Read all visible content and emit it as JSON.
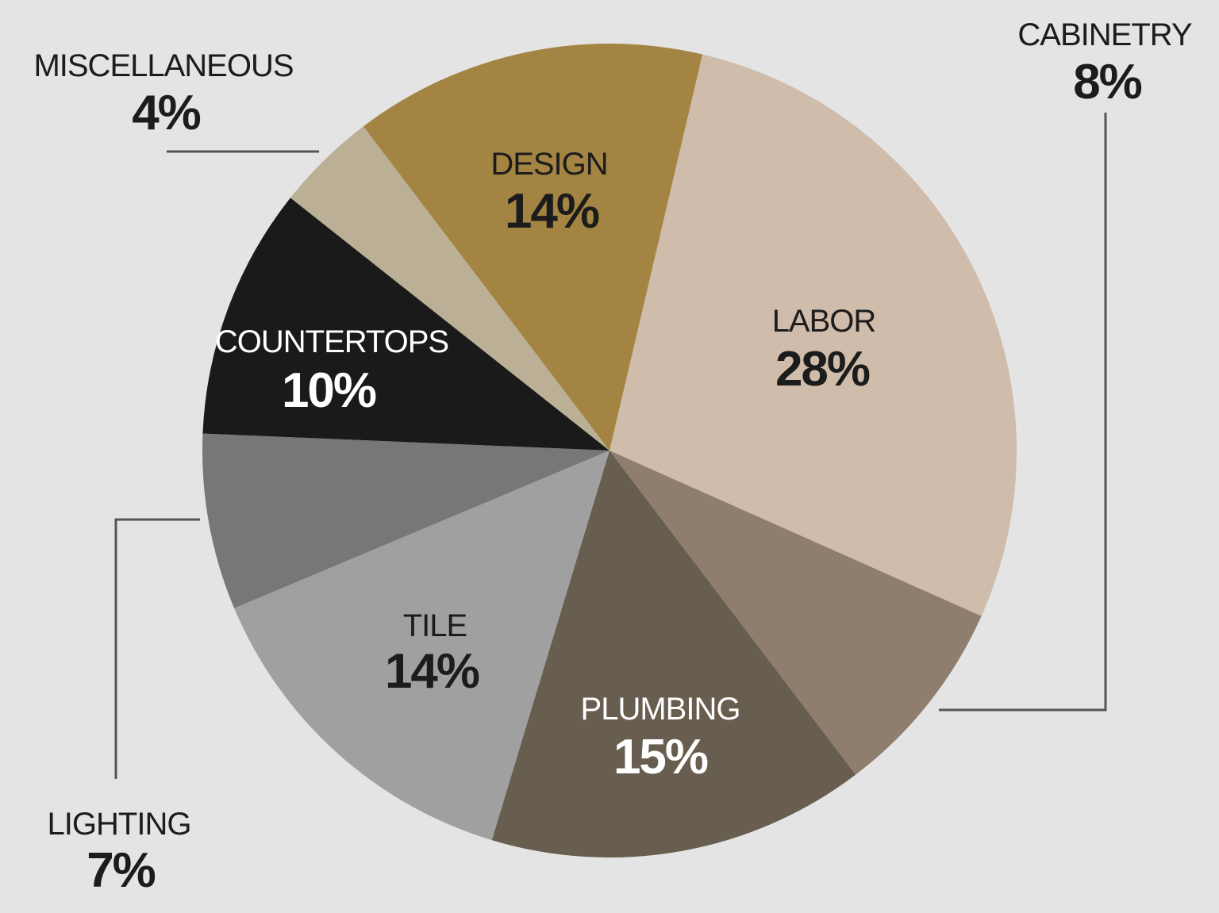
{
  "chart_data": {
    "type": "pie",
    "title": "",
    "categories": [
      "Labor",
      "Cabinetry",
      "Plumbing",
      "Tile",
      "Lighting",
      "Countertops",
      "Miscellaneous",
      "Design"
    ],
    "values": [
      28,
      8,
      15,
      14,
      7,
      10,
      4,
      14
    ],
    "unit": "%",
    "legend": "none (direct labels)",
    "slices": [
      {
        "name": "LABOR",
        "label": "28%",
        "value": 28,
        "color": "#cfbcab",
        "text_color": "#1c1c1c",
        "placement": "inside"
      },
      {
        "name": "CABINETRY",
        "label": "8%",
        "value": 8,
        "color": "#8f7e6e",
        "text_color": "#1c1c1c",
        "placement": "outside-callout"
      },
      {
        "name": "PLUMBING",
        "label": "15%",
        "value": 15,
        "color": "#675e4f",
        "text_color": "#ffffff",
        "placement": "inside"
      },
      {
        "name": "TILE",
        "label": "14%",
        "value": 14,
        "color": "#a0a0a0",
        "text_color": "#1c1c1c",
        "placement": "inside"
      },
      {
        "name": "LIGHTING",
        "label": "7%",
        "value": 7,
        "color": "#777777",
        "text_color": "#1c1c1c",
        "placement": "outside-callout"
      },
      {
        "name": "COUNTERTOPS",
        "label": "10%",
        "value": 10,
        "color": "#1a1a1a",
        "text_color": "#ffffff",
        "placement": "inside"
      },
      {
        "name": "MISCELLANEOUS",
        "label": "4%",
        "value": 4,
        "color": "#bbb095",
        "text_color": "#1c1c1c",
        "placement": "outside-callout"
      },
      {
        "name": "DESIGN",
        "label": "14%",
        "value": 14,
        "color": "#a38442",
        "text_color": "#1c1c1c",
        "placement": "inside"
      }
    ]
  },
  "colors": {
    "background": "#e4e4e4",
    "callout_line": "#555555"
  }
}
